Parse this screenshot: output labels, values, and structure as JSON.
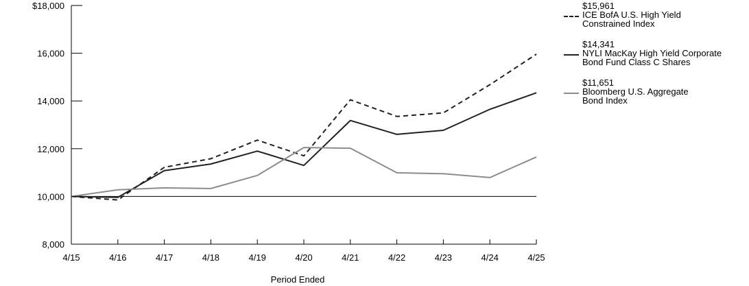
{
  "chart_data": {
    "type": "line",
    "x": [
      "4/15",
      "4/16",
      "4/17",
      "4/18",
      "4/19",
      "4/20",
      "4/21",
      "4/22",
      "4/23",
      "4/24",
      "4/25"
    ],
    "xlabel": "Period Ended",
    "ylabel": "",
    "ylim": [
      8000,
      18000
    ],
    "yticks": [
      8000,
      10000,
      12000,
      14000,
      16000,
      18000
    ],
    "ytick_labels": [
      "8,000",
      "10,000",
      "12,000",
      "14,000",
      "16,000",
      "$18,000"
    ],
    "reference_line": 10000,
    "grid": false,
    "legend_position": "top-right",
    "series": [
      {
        "name": "ICE BofA U.S. High Yield Constrained Index",
        "name_lines": [
          "ICE BofA U.S. High Yield",
          "Constrained Index"
        ],
        "end_value_label": "$15,961",
        "style": "dashed",
        "color": "#231f20",
        "values": [
          10000,
          9850,
          11220,
          11580,
          12360,
          11700,
          14050,
          13350,
          13500,
          14680,
          15961
        ]
      },
      {
        "name": "NYLI MacKay High Yield Corporate Bond Fund Class C Shares",
        "name_lines": [
          "NYLI MacKay High Yield Corporate",
          "Bond Fund Class C Shares"
        ],
        "end_value_label": "$14,341",
        "style": "solid",
        "color": "#231f20",
        "values": [
          10000,
          9960,
          11080,
          11360,
          11900,
          11300,
          13180,
          12600,
          12770,
          13650,
          14341
        ]
      },
      {
        "name": "Bloomberg U.S. Aggregate Bond Index",
        "name_lines": [
          "Bloomberg U.S. Aggregate",
          "Bond Index"
        ],
        "end_value_label": "$11,651",
        "style": "solid",
        "color": "#8c8c8c",
        "values": [
          10000,
          10280,
          10360,
          10330,
          10880,
          12050,
          12020,
          10990,
          10950,
          10790,
          11651
        ]
      }
    ]
  }
}
